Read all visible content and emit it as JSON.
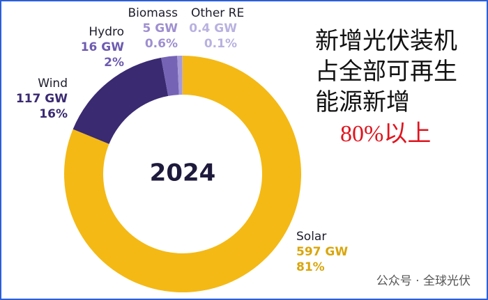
{
  "chart_data": {
    "type": "donut",
    "center_label": "2024",
    "categories": [
      "Solar",
      "Wind",
      "Hydro",
      "Biomass",
      "Other RE"
    ],
    "values": [
      597,
      117,
      16,
      5,
      0.4
    ],
    "value_labels": [
      "597 GW",
      "117 GW",
      "16 GW",
      "5 GW",
      "0.4 GW"
    ],
    "percentage_labels": [
      "81%",
      "16%",
      "2%",
      "0.6%",
      "0.1%"
    ],
    "colors": [
      "#f4b915",
      "#3a2a72",
      "#7563b5",
      "#a799d6",
      "#cbc5e8"
    ],
    "annotation_lines": [
      "新增光伏装机",
      "占全部可再生",
      "能源新增"
    ],
    "annotation_highlight": "80%以上"
  },
  "watermark": "公众号 · 全球光伏"
}
